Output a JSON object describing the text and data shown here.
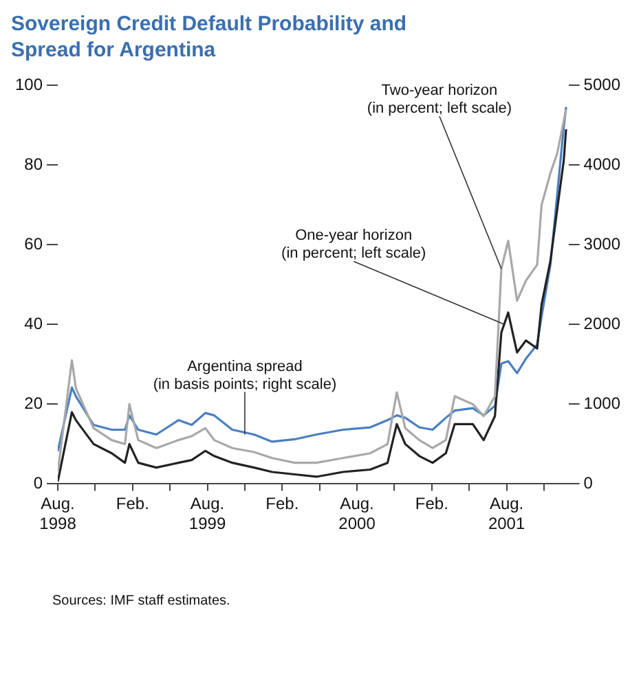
{
  "chart_data": {
    "type": "line",
    "title": "Sovereign Credit Default Probability and\nSpread for Argentina",
    "x": [
      "1998-08-01",
      "1998-09-05",
      "1998-09-15",
      "1998-10-28",
      "1998-12-11",
      "1999-01-13",
      "1999-01-24",
      "1999-02-15",
      "1999-03-29",
      "1999-05-22",
      "1999-06-24",
      "1999-07-27",
      "1999-08-18",
      "1999-10-01",
      "1999-11-24",
      "2000-01-07",
      "2000-03-01",
      "2000-04-24",
      "2000-06-28",
      "2000-09-03",
      "2000-10-15",
      "2000-11-07",
      "2000-11-28",
      "2001-01-01",
      "2001-02-03",
      "2001-03-05",
      "2001-03-27",
      "2001-05-10",
      "2001-06-06",
      "2001-07-03",
      "2001-07-19",
      "2001-08-05",
      "2001-08-27",
      "2001-09-18",
      "2001-10-15",
      "2001-10-26",
      "2001-11-17",
      "2001-12-03",
      "2001-12-19",
      "2001-12-25"
    ],
    "series": [
      {
        "color": "#a8a8a8",
        "values": [
          3,
          31,
          24,
          14,
          11,
          10,
          20,
          11,
          9,
          11,
          12,
          14,
          11,
          9,
          8,
          6.5,
          5.3,
          5.3,
          6.5,
          7.7,
          10,
          23,
          14,
          11,
          9,
          11,
          22,
          20,
          17,
          22,
          54,
          61,
          46,
          51,
          55,
          70,
          78,
          83,
          91,
          94
        ]
      },
      {
        "color": "#222222",
        "values": [
          0.6,
          18,
          16,
          10,
          7.7,
          5.3,
          10,
          5.3,
          4.1,
          5.3,
          6,
          8.3,
          7,
          5.3,
          4.1,
          3,
          2.4,
          1.8,
          3,
          3.6,
          5.3,
          15,
          10,
          7,
          5.3,
          7.7,
          15,
          15,
          11,
          17,
          38,
          43,
          33,
          36,
          34,
          45,
          56,
          69,
          81,
          89
        ]
      },
      {
        "color": "#4a7fc0",
        "axis": "y2",
        "values": [
          410,
          1210,
          1100,
          740,
          680,
          680,
          860,
          680,
          620,
          800,
          740,
          890,
          860,
          680,
          620,
          530,
          560,
          620,
          680,
          710,
          800,
          860,
          830,
          710,
          680,
          830,
          920,
          950,
          860,
          980,
          1510,
          1540,
          1390,
          1570,
          1750,
          2100,
          2750,
          3640,
          4470,
          4730
        ]
      }
    ],
    "xlim": [
      "1998-08-01",
      "2001-12-31"
    ],
    "xticks": [
      {
        "value": "1998-08-01",
        "label": "Aug.\n1998"
      },
      {
        "value": "1998-11-01",
        "label": null
      },
      {
        "value": "1999-02-01",
        "label": "Feb."
      },
      {
        "value": "1999-05-01",
        "label": null
      },
      {
        "value": "1999-08-01",
        "label": "Aug.\n1999"
      },
      {
        "value": "1999-11-01",
        "label": null
      },
      {
        "value": "2000-02-01",
        "label": "Feb."
      },
      {
        "value": "2000-05-01",
        "label": null
      },
      {
        "value": "2000-08-01",
        "label": "Aug.\n2000"
      },
      {
        "value": "2000-11-01",
        "label": null
      },
      {
        "value": "2001-02-01",
        "label": "Feb."
      },
      {
        "value": "2001-05-01",
        "label": null
      },
      {
        "value": "2001-08-01",
        "label": "Aug.\n2001"
      },
      {
        "value": "2001-11-01",
        "label": null
      }
    ],
    "ylim": [
      0,
      100
    ],
    "yticks": [
      0,
      20,
      40,
      60,
      80,
      100
    ],
    "y2lim": [
      0,
      5000
    ],
    "y2ticks": [
      0,
      1000,
      2000,
      3000,
      4000,
      5000
    ],
    "annotations": [
      {
        "text": "Two-year horizon\n(in percent; left scale)",
        "x": "2001-07-19",
        "y": 54
      },
      {
        "text": "One-year horizon\n(in percent; left scale)",
        "x": "2001-07-28",
        "y": 40
      },
      {
        "text": "Argentina spread\n(in basis points; right scale)",
        "x": "1999-11-01",
        "y": 12.4
      },
      "Sources: IMF staff estimates."
    ],
    "legend": false,
    "grid": false
  }
}
